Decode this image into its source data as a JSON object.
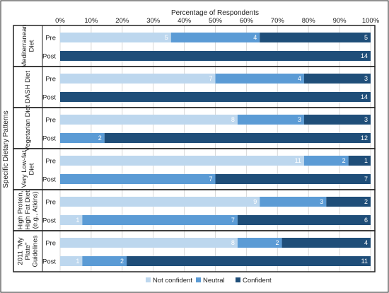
{
  "chart_data": {
    "type": "bar",
    "orientation": "horizontal",
    "stacked": "percent",
    "xlabel": "Percentage of Respondents",
    "ylabel": "Specific Dietary Patterns",
    "x_ticks": [
      "0%",
      "10%",
      "20%",
      "30%",
      "40%",
      "50%",
      "60%",
      "70%",
      "80%",
      "90%",
      "100%"
    ],
    "xlim": [
      0,
      100
    ],
    "grid": true,
    "legend_position": "bottom",
    "series": [
      {
        "name": "Not confident",
        "color": "#bdd7ee"
      },
      {
        "name": "Neutral",
        "color": "#5b9bd5"
      },
      {
        "name": "Confident",
        "color": "#1f4e79"
      }
    ],
    "groups": [
      {
        "label": [
          "Mediterranean",
          "Diet"
        ],
        "rows": [
          {
            "label": "Pre",
            "values": [
              5,
              4,
              5
            ]
          },
          {
            "label": "Post",
            "values": [
              0,
              0,
              14
            ]
          }
        ]
      },
      {
        "label": [
          "DASH Diet"
        ],
        "rows": [
          {
            "label": "Pre",
            "values": [
              7,
              4,
              3
            ]
          },
          {
            "label": "Post",
            "values": [
              0,
              0,
              14
            ]
          }
        ]
      },
      {
        "label": [
          "Vegetarian Diet"
        ],
        "rows": [
          {
            "label": "Pre",
            "values": [
              8,
              3,
              3
            ]
          },
          {
            "label": "Post",
            "values": [
              0,
              2,
              12
            ]
          }
        ]
      },
      {
        "label": [
          "Very Low-fat",
          "Diet"
        ],
        "rows": [
          {
            "label": "Pre",
            "values": [
              11,
              2,
              1
            ]
          },
          {
            "label": "Post",
            "values": [
              0,
              7,
              7
            ]
          }
        ]
      },
      {
        "label": [
          "High Protein,",
          "High Fat Diet",
          "(e.g., Atkins)"
        ],
        "rows": [
          {
            "label": "Pre",
            "values": [
              9,
              3,
              2
            ]
          },
          {
            "label": "Post",
            "values": [
              1,
              7,
              6
            ]
          }
        ]
      },
      {
        "label": [
          "2011 \"My",
          "Plate\"",
          "Guidelines"
        ],
        "rows": [
          {
            "label": "Pre",
            "values": [
              8,
              2,
              4
            ]
          },
          {
            "label": "Post",
            "values": [
              1,
              2,
              11
            ]
          }
        ]
      }
    ]
  }
}
